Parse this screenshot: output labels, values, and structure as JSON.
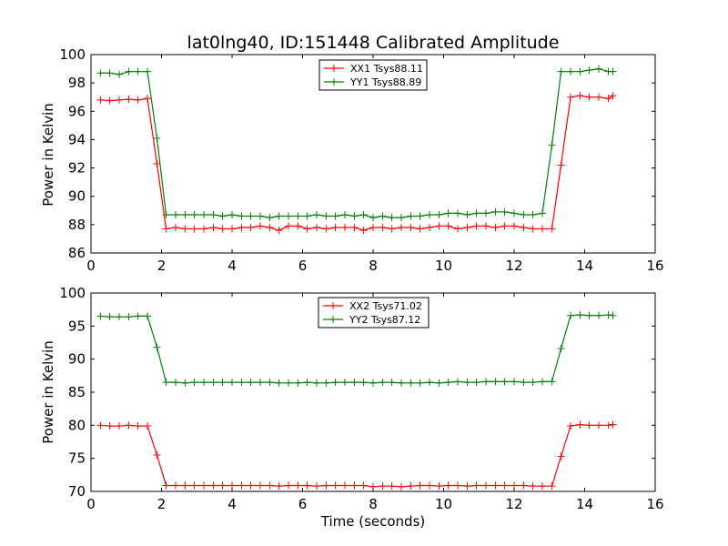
{
  "chart_data": [
    {
      "type": "line",
      "title": "lat0lng40, ID:151448 Calibrated Amplitude",
      "xlabel": "",
      "ylabel": "Power in Kelvin",
      "xlim": [
        0,
        16
      ],
      "ylim": [
        86,
        100
      ],
      "xticks": [
        0,
        2,
        4,
        6,
        8,
        10,
        12,
        14,
        16
      ],
      "yticks": [
        86,
        88,
        90,
        92,
        94,
        96,
        98,
        100
      ],
      "grid": false,
      "legend": "top-center",
      "x": [
        0.27,
        0.53,
        0.8,
        1.07,
        1.33,
        1.6,
        1.87,
        2.13,
        2.4,
        2.67,
        2.93,
        3.2,
        3.47,
        3.73,
        4.0,
        4.27,
        4.53,
        4.8,
        5.07,
        5.33,
        5.6,
        5.87,
        6.13,
        6.4,
        6.67,
        6.93,
        7.2,
        7.47,
        7.73,
        8.0,
        8.27,
        8.53,
        8.8,
        9.07,
        9.33,
        9.6,
        9.87,
        10.13,
        10.4,
        10.67,
        10.93,
        11.2,
        11.47,
        11.73,
        12.0,
        12.27,
        12.53,
        12.8,
        13.07,
        13.33,
        13.6,
        13.87,
        14.13,
        14.4,
        14.67,
        14.8
      ],
      "series": [
        {
          "name": "XX1 Tsys88.11",
          "color": "#ff0000",
          "values": [
            96.8,
            96.75,
            96.8,
            96.85,
            96.8,
            96.9,
            92.3,
            87.7,
            87.8,
            87.7,
            87.7,
            87.7,
            87.8,
            87.7,
            87.7,
            87.8,
            87.8,
            87.9,
            87.8,
            87.6,
            87.9,
            87.9,
            87.7,
            87.8,
            87.7,
            87.8,
            87.8,
            87.8,
            87.6,
            87.8,
            87.8,
            87.7,
            87.8,
            87.8,
            87.7,
            87.8,
            87.9,
            87.9,
            87.7,
            87.8,
            87.9,
            87.9,
            87.8,
            87.9,
            87.9,
            87.8,
            87.7,
            87.7,
            87.7,
            92.2,
            97.0,
            97.1,
            97.0,
            97.0,
            96.9,
            97.1
          ]
        },
        {
          "name": "YY1 Tsys88.89",
          "color": "#008000",
          "values": [
            98.7,
            98.7,
            98.6,
            98.8,
            98.8,
            98.8,
            94.1,
            88.7,
            88.7,
            88.7,
            88.7,
            88.7,
            88.7,
            88.6,
            88.7,
            88.6,
            88.6,
            88.6,
            88.5,
            88.6,
            88.6,
            88.6,
            88.6,
            88.7,
            88.6,
            88.6,
            88.7,
            88.6,
            88.7,
            88.5,
            88.6,
            88.5,
            88.5,
            88.6,
            88.6,
            88.7,
            88.7,
            88.8,
            88.8,
            88.7,
            88.8,
            88.8,
            88.9,
            88.9,
            88.8,
            88.7,
            88.7,
            88.8,
            93.6,
            98.8,
            98.8,
            98.8,
            98.9,
            99.0,
            98.8,
            98.8
          ]
        }
      ]
    },
    {
      "type": "line",
      "title": "",
      "xlabel": "Time (seconds)",
      "ylabel": "Power in Kelvin",
      "xlim": [
        0,
        16
      ],
      "ylim": [
        70,
        100
      ],
      "xticks": [
        0,
        2,
        4,
        6,
        8,
        10,
        12,
        14,
        16
      ],
      "yticks": [
        70,
        75,
        80,
        85,
        90,
        95,
        100
      ],
      "grid": false,
      "legend": "top-center",
      "x": [
        0.27,
        0.53,
        0.8,
        1.07,
        1.33,
        1.6,
        1.87,
        2.13,
        2.4,
        2.67,
        2.93,
        3.2,
        3.47,
        3.73,
        4.0,
        4.27,
        4.53,
        4.8,
        5.07,
        5.33,
        5.6,
        5.87,
        6.13,
        6.4,
        6.67,
        6.93,
        7.2,
        7.47,
        7.73,
        8.0,
        8.27,
        8.53,
        8.8,
        9.07,
        9.33,
        9.6,
        9.87,
        10.13,
        10.4,
        10.67,
        10.93,
        11.2,
        11.47,
        11.73,
        12.0,
        12.27,
        12.53,
        12.8,
        13.07,
        13.33,
        13.6,
        13.87,
        14.13,
        14.4,
        14.67,
        14.8
      ],
      "series": [
        {
          "name": "XX2 Tsys71.02",
          "color": "#ff0000",
          "values": [
            80.0,
            79.9,
            79.9,
            80.0,
            79.9,
            79.9,
            75.5,
            70.9,
            70.9,
            70.9,
            70.9,
            70.9,
            70.9,
            70.9,
            70.9,
            70.9,
            70.9,
            70.9,
            70.9,
            70.8,
            70.9,
            70.9,
            70.9,
            70.8,
            70.9,
            70.9,
            70.9,
            70.9,
            70.9,
            70.7,
            70.8,
            70.8,
            70.7,
            70.8,
            70.9,
            70.9,
            70.8,
            70.9,
            70.9,
            70.8,
            70.9,
            70.9,
            70.9,
            70.9,
            70.9,
            70.9,
            70.8,
            70.8,
            70.8,
            75.3,
            79.9,
            80.1,
            80.0,
            80.0,
            80.0,
            80.1
          ]
        },
        {
          "name": "YY2 Tsys87.12",
          "color": "#008000",
          "values": [
            96.5,
            96.4,
            96.4,
            96.4,
            96.5,
            96.5,
            91.8,
            86.5,
            86.5,
            86.4,
            86.5,
            86.5,
            86.5,
            86.5,
            86.5,
            86.5,
            86.5,
            86.5,
            86.5,
            86.4,
            86.4,
            86.4,
            86.5,
            86.4,
            86.4,
            86.5,
            86.5,
            86.5,
            86.5,
            86.4,
            86.5,
            86.5,
            86.4,
            86.4,
            86.4,
            86.5,
            86.4,
            86.5,
            86.6,
            86.5,
            86.5,
            86.6,
            86.6,
            86.6,
            86.6,
            86.5,
            86.5,
            86.6,
            86.6,
            91.6,
            96.6,
            96.7,
            96.6,
            96.6,
            96.7,
            96.6
          ]
        }
      ]
    }
  ]
}
